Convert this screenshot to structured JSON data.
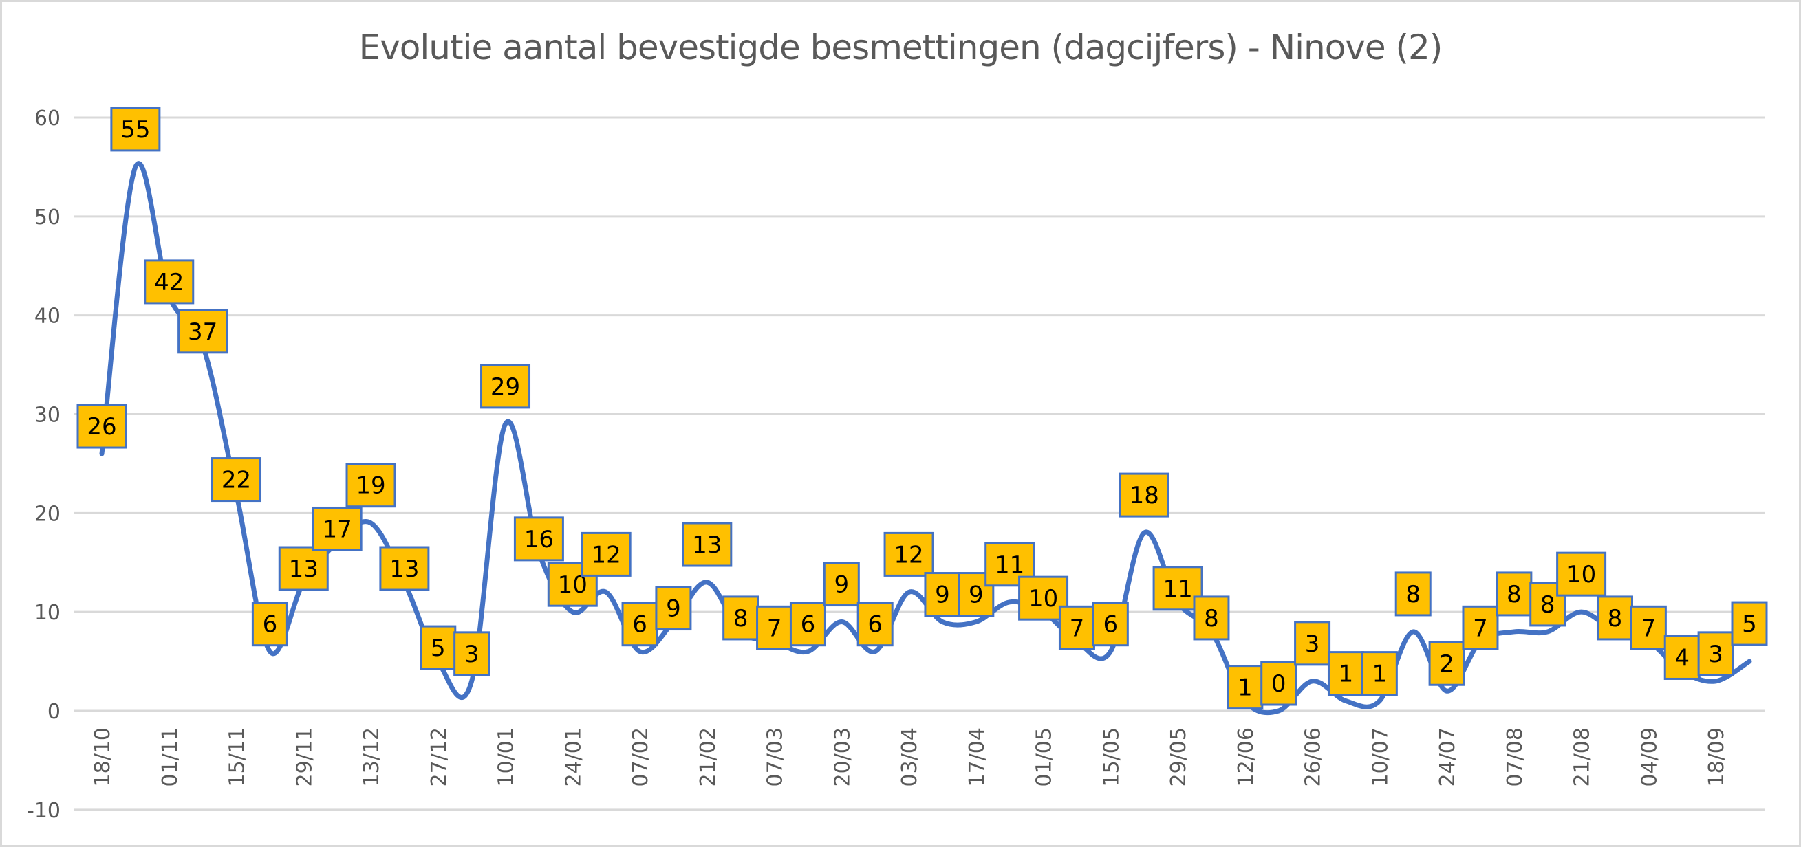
{
  "chart_data": {
    "type": "line",
    "title": "Evolutie aantal bevestigde besmettingen (dagcijfers) - Ninove (2)",
    "xlabel": "",
    "ylabel": "",
    "ylim": [
      -10,
      60
    ],
    "yticks": [
      -10,
      0,
      10,
      20,
      30,
      40,
      50,
      60
    ],
    "ytick_labels": [
      "-10",
      "0",
      "10",
      "20",
      "30",
      "40",
      "50",
      "60"
    ],
    "grid": true,
    "legend": "none",
    "smooth": true,
    "x_tick_labels": [
      "18/10",
      "01/11",
      "15/11",
      "29/11",
      "13/12",
      "27/12",
      "10/01",
      "24/01",
      "07/02",
      "21/02",
      "07/03",
      "20/03",
      "03/04",
      "17/04",
      "01/05",
      "15/05",
      "29/05",
      "12/06",
      "26/06",
      "10/07",
      "24/07",
      "07/08",
      "21/08",
      "04/09",
      "18/09"
    ],
    "x_tick_every": 2,
    "series": [
      {
        "name": "Bevestigde besmettingen",
        "color": "#4472c4",
        "label_fill": "#ffc000",
        "label_border": "#4472c4",
        "values": [
          26,
          55,
          42,
          37,
          22,
          6,
          13,
          17,
          19,
          13,
          5,
          3,
          29,
          16,
          10,
          12,
          6,
          9,
          13,
          8,
          7,
          6,
          9,
          6,
          12,
          9,
          9,
          11,
          10,
          7,
          6,
          18,
          11,
          8,
          1,
          0,
          3,
          1,
          1,
          8,
          2,
          7,
          8,
          8,
          10,
          8,
          7,
          4,
          3,
          5
        ]
      }
    ]
  }
}
